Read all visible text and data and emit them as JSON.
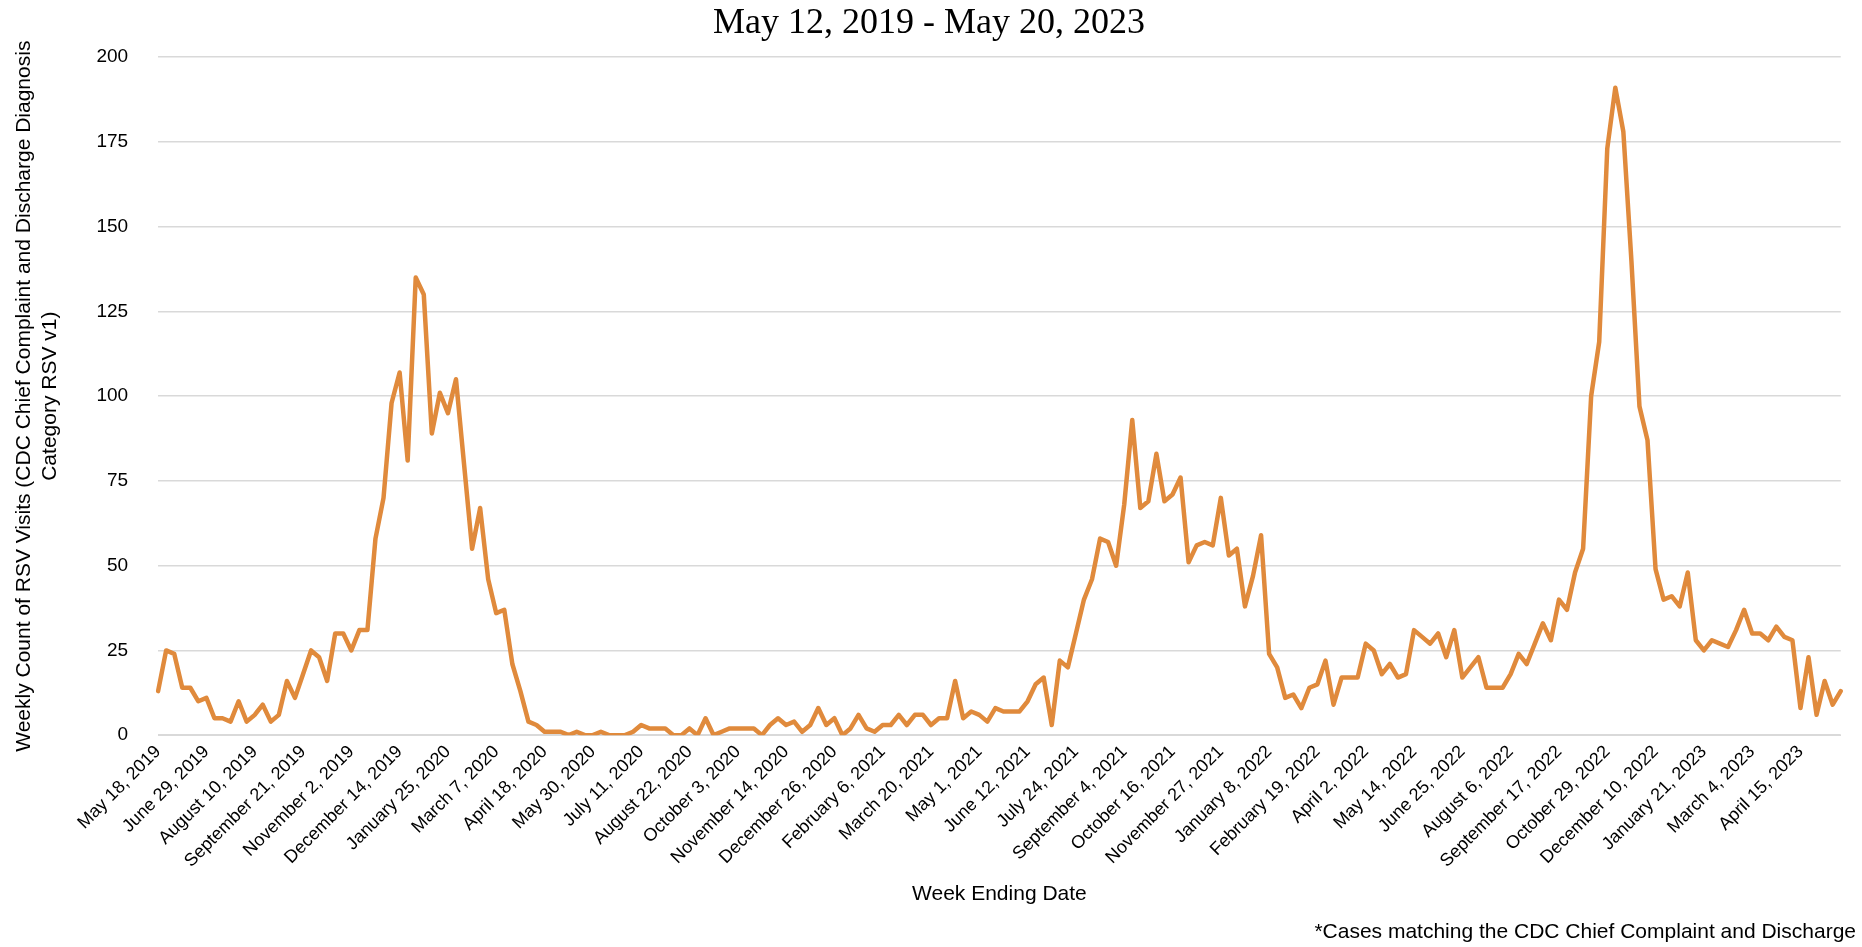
{
  "chart_data": {
    "type": "line",
    "title": "May 12, 2019 - May 20, 2023",
    "xlabel": "Week Ending Date",
    "ylabel": "Weekly Count of RSV Visits (CDC Chief Complaint and Discharge Diagnosis Category RSV v1)",
    "annotations": [
      "*Cases matching the CDC Chief Complaint and Discharge"
    ],
    "categories": [
      "May 18, 2019",
      null,
      null,
      null,
      null,
      null,
      "June 29, 2019",
      null,
      null,
      null,
      null,
      null,
      "August 10, 2019",
      null,
      null,
      null,
      null,
      null,
      "September 21, 2019",
      null,
      null,
      null,
      null,
      null,
      "November 2, 2019",
      null,
      null,
      null,
      null,
      null,
      "December 14, 2019",
      null,
      null,
      null,
      null,
      null,
      "January 25, 2020",
      null,
      null,
      null,
      null,
      null,
      "March 7, 2020",
      null,
      null,
      null,
      null,
      null,
      "April 18, 2020",
      null,
      null,
      null,
      null,
      null,
      "May 30, 2020",
      null,
      null,
      null,
      null,
      null,
      "July 11, 2020",
      null,
      null,
      null,
      null,
      null,
      "August 22, 2020",
      null,
      null,
      null,
      null,
      null,
      "October 3, 2020",
      null,
      null,
      null,
      null,
      null,
      "November 14, 2020",
      null,
      null,
      null,
      null,
      null,
      "December 26, 2020",
      null,
      null,
      null,
      null,
      null,
      "February 6, 2021",
      null,
      null,
      null,
      null,
      null,
      "March 20, 2021",
      null,
      null,
      null,
      null,
      null,
      "May 1, 2021",
      null,
      null,
      null,
      null,
      null,
      "June 12, 2021",
      null,
      null,
      null,
      null,
      null,
      "July 24, 2021",
      null,
      null,
      null,
      null,
      null,
      "September 4, 2021",
      null,
      null,
      null,
      null,
      null,
      "October 16, 2021",
      null,
      null,
      null,
      null,
      null,
      "November 27, 2021",
      null,
      null,
      null,
      null,
      null,
      "January 8, 2022",
      null,
      null,
      null,
      null,
      null,
      "February 19, 2022",
      null,
      null,
      null,
      null,
      null,
      "April 2, 2022",
      null,
      null,
      null,
      null,
      null,
      "May 14, 2022",
      null,
      null,
      null,
      null,
      null,
      "June 25, 2022",
      null,
      null,
      null,
      null,
      null,
      "August 6, 2022",
      null,
      null,
      null,
      null,
      null,
      "September 17, 2022",
      null,
      null,
      null,
      null,
      null,
      "October 29, 2022",
      null,
      null,
      null,
      null,
      null,
      "December 10, 2022",
      null,
      null,
      null,
      null,
      null,
      "January 21, 2023",
      null,
      null,
      null,
      null,
      null,
      "March 4, 2023",
      null,
      null,
      null,
      null,
      null,
      "April 15, 2023",
      null,
      null,
      null,
      null,
      null
    ],
    "series": [
      {
        "color": "#e08a3c",
        "values": [
          13,
          25,
          24,
          14,
          14,
          10,
          11,
          5,
          5,
          4,
          10,
          4,
          6,
          9,
          4,
          6,
          16,
          11,
          18,
          25,
          23,
          16,
          30,
          30,
          25,
          31,
          31,
          58,
          70,
          98,
          107,
          81,
          135,
          130,
          89,
          101,
          95,
          105,
          80,
          55,
          67,
          46,
          36,
          37,
          21,
          13,
          4,
          3,
          1,
          1,
          1,
          0,
          1,
          0,
          0,
          1,
          0,
          0,
          0,
          1,
          3,
          2,
          2,
          2,
          0,
          0,
          2,
          0,
          5,
          0,
          1,
          2,
          2,
          2,
          2,
          0,
          3,
          5,
          3,
          4,
          1,
          3,
          8,
          3,
          5,
          0,
          2,
          6,
          2,
          1,
          3,
          3,
          6,
          3,
          6,
          6,
          3,
          5,
          5,
          16,
          5,
          7,
          6,
          4,
          8,
          7,
          7,
          7,
          10,
          15,
          17,
          3,
          22,
          20,
          30,
          40,
          46,
          58,
          57,
          50,
          68,
          93,
          67,
          69,
          83,
          69,
          71,
          76,
          51,
          56,
          57,
          56,
          70,
          53,
          55,
          38,
          47,
          59,
          24,
          20,
          11,
          12,
          8,
          14,
          15,
          22,
          9,
          17,
          17,
          17,
          27,
          25,
          18,
          21,
          17,
          18,
          31,
          29,
          27,
          30,
          23,
          31,
          17,
          20,
          23,
          14,
          14,
          14,
          18,
          24,
          21,
          27,
          33,
          28,
          40,
          37,
          48,
          55,
          100,
          116,
          173,
          191,
          178,
          140,
          97,
          87,
          49,
          40,
          41,
          38,
          48,
          28,
          25,
          28,
          27,
          26,
          31,
          37,
          30,
          30,
          28,
          32,
          29,
          28,
          8,
          23,
          6,
          16,
          9,
          13
        ]
      }
    ],
    "ylim": [
      0,
      200
    ],
    "yticks": [
      0,
      25,
      50,
      75,
      100,
      125,
      150,
      175,
      200
    ],
    "grid": "y",
    "marker": "none",
    "line_style": "solid",
    "legend": false
  }
}
